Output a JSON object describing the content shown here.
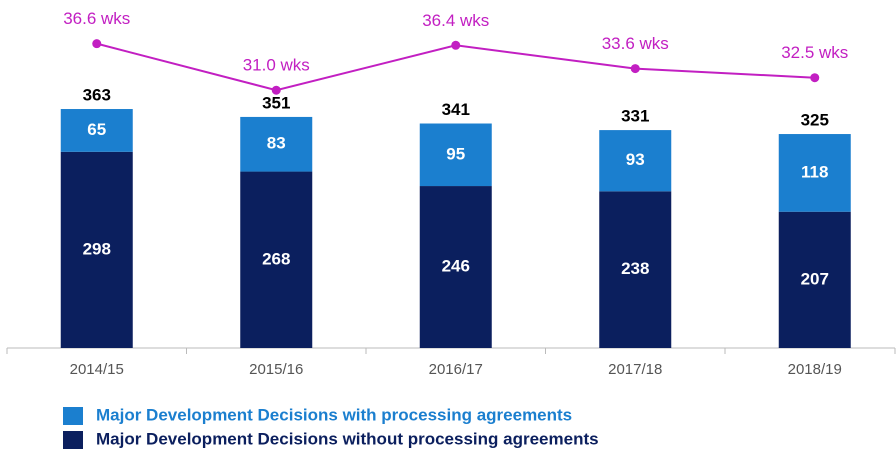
{
  "chart_data": {
    "type": "stacked_bar_line",
    "categories": [
      "2014/15",
      "2015/16",
      "2016/17",
      "2017/18",
      "2018/19"
    ],
    "series": [
      {
        "name": "Major Development Decisions without processing agreements",
        "color": "#0b1f5e",
        "values": [
          298,
          268,
          246,
          238,
          207
        ]
      },
      {
        "name": "Major Development Decisions with  processing agreements",
        "color": "#1b7fcf",
        "values": [
          65,
          83,
          95,
          93,
          118
        ]
      }
    ],
    "totals": [
      363,
      351,
      341,
      331,
      325
    ],
    "line": {
      "color": "#c21fc2",
      "axis": "y2",
      "values": [
        36.6,
        31.0,
        36.4,
        33.6,
        32.5
      ],
      "value_labels": [
        "36.6 wks",
        "31.0 wks",
        "36.4 wks",
        "33.6 wks",
        "32.5 wks"
      ]
    },
    "ylim": [
      0,
      480
    ],
    "y2lim": [
      0,
      38
    ]
  }
}
